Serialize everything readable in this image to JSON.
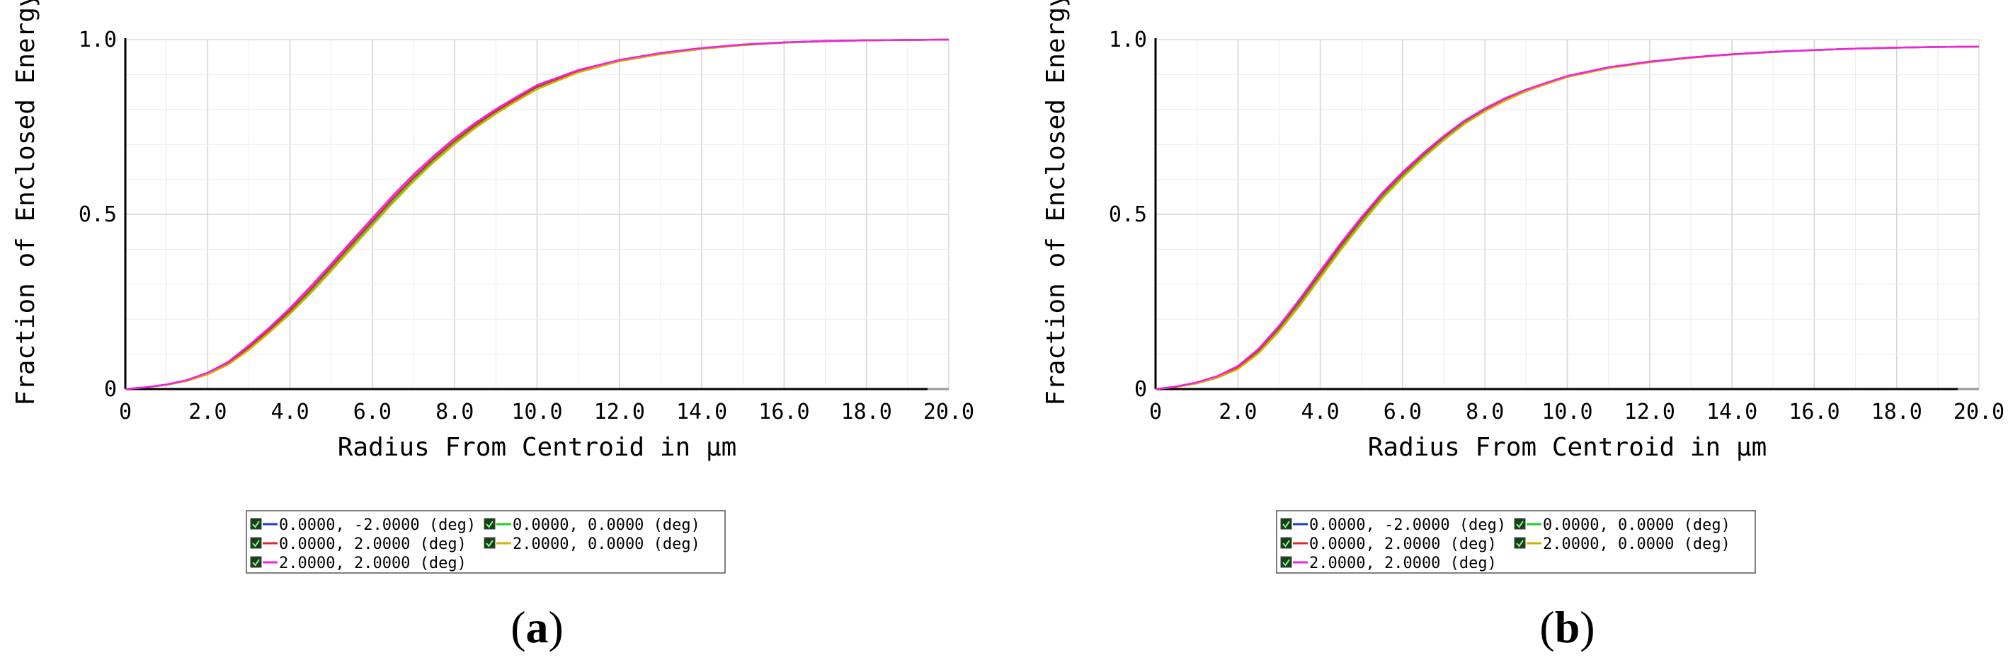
{
  "chart_data": [
    {
      "type": "line",
      "panel_label": "(a)",
      "xlabel": "Radius From Centroid in µm",
      "ylabel": "Fraction of Enclosed Energy",
      "xlim": [
        0,
        20
      ],
      "ylim": [
        0,
        1
      ],
      "x_ticks": [
        "0",
        "2.0",
        "4.0",
        "6.0",
        "8.0",
        "10.0",
        "12.0",
        "14.0",
        "16.0",
        "18.0",
        "20.0"
      ],
      "x_tick_values": [
        0,
        2,
        4,
        6,
        8,
        10,
        12,
        14,
        16,
        18,
        20
      ],
      "y_ticks": [
        "0",
        "0.5",
        "1.0"
      ],
      "y_tick_values": [
        0,
        0.5,
        1.0
      ],
      "grid": true,
      "legend_position": "bottom-center",
      "x": [
        0,
        0.5,
        1,
        1.5,
        2,
        2.5,
        3,
        3.5,
        4,
        4.5,
        5,
        5.5,
        6,
        6.5,
        7,
        7.5,
        8,
        8.5,
        9,
        9.5,
        10,
        11,
        12,
        13,
        14,
        15,
        16,
        17,
        18,
        19,
        20
      ],
      "series": [
        {
          "name": "0.0000, -2.0000 (deg)",
          "color": "#1a3fc8",
          "values": [
            0,
            0.005,
            0.013,
            0.025,
            0.045,
            0.075,
            0.12,
            0.17,
            0.225,
            0.285,
            0.35,
            0.415,
            0.48,
            0.545,
            0.605,
            0.66,
            0.71,
            0.755,
            0.795,
            0.83,
            0.865,
            0.91,
            0.94,
            0.96,
            0.975,
            0.985,
            0.992,
            0.996,
            0.998,
            0.999,
            1.0
          ]
        },
        {
          "name": "0.0000, 0.0000 (deg)",
          "color": "#1fd21f",
          "values": [
            0,
            0.005,
            0.012,
            0.024,
            0.043,
            0.072,
            0.115,
            0.165,
            0.218,
            0.278,
            0.342,
            0.407,
            0.472,
            0.537,
            0.598,
            0.654,
            0.705,
            0.75,
            0.79,
            0.826,
            0.86,
            0.908,
            0.939,
            0.959,
            0.974,
            0.984,
            0.991,
            0.995,
            0.998,
            0.999,
            1.0
          ]
        },
        {
          "name": "0.0000, 2.0000 (deg)",
          "color": "#e02828",
          "values": [
            0,
            0.005,
            0.013,
            0.025,
            0.045,
            0.075,
            0.12,
            0.17,
            0.225,
            0.286,
            0.35,
            0.416,
            0.481,
            0.546,
            0.606,
            0.661,
            0.711,
            0.756,
            0.796,
            0.831,
            0.866,
            0.91,
            0.94,
            0.96,
            0.975,
            0.985,
            0.992,
            0.996,
            0.998,
            0.999,
            1.0
          ]
        },
        {
          "name": "2.0000, 0.0000 (deg)",
          "color": "#d4b000",
          "values": [
            0,
            0.005,
            0.012,
            0.023,
            0.042,
            0.07,
            0.112,
            0.162,
            0.215,
            0.274,
            0.338,
            0.403,
            0.468,
            0.533,
            0.594,
            0.65,
            0.701,
            0.747,
            0.788,
            0.824,
            0.858,
            0.906,
            0.938,
            0.958,
            0.973,
            0.984,
            0.991,
            0.995,
            0.998,
            0.999,
            1.0
          ]
        },
        {
          "name": "2.0000, 2.0000 (deg)",
          "color": "#f020e8",
          "values": [
            0,
            0.005,
            0.013,
            0.026,
            0.047,
            0.078,
            0.125,
            0.176,
            0.232,
            0.294,
            0.358,
            0.424,
            0.489,
            0.554,
            0.614,
            0.668,
            0.718,
            0.762,
            0.801,
            0.836,
            0.87,
            0.913,
            0.942,
            0.962,
            0.976,
            0.986,
            0.992,
            0.996,
            0.998,
            0.999,
            1.0
          ]
        }
      ]
    },
    {
      "type": "line",
      "panel_label": "(b)",
      "xlabel": "Radius From Centroid in µm",
      "ylabel": "Fraction of Enclosed Energy",
      "xlim": [
        0,
        20
      ],
      "ylim": [
        0,
        1
      ],
      "x_ticks": [
        "0",
        "2.0",
        "4.0",
        "6.0",
        "8.0",
        "10.0",
        "12.0",
        "14.0",
        "16.0",
        "18.0",
        "20.0"
      ],
      "x_tick_values": [
        0,
        2,
        4,
        6,
        8,
        10,
        12,
        14,
        16,
        18,
        20
      ],
      "y_ticks": [
        "0",
        "0.5",
        "1.0"
      ],
      "y_tick_values": [
        0,
        0.5,
        1.0
      ],
      "grid": true,
      "legend_position": "bottom-center",
      "x": [
        0,
        0.5,
        1,
        1.5,
        2,
        2.5,
        3,
        3.5,
        4,
        4.5,
        5,
        5.5,
        6,
        6.5,
        7,
        7.5,
        8,
        8.5,
        9,
        9.5,
        10,
        11,
        12,
        13,
        14,
        15,
        16,
        17,
        18,
        19,
        20
      ],
      "series": [
        {
          "name": "0.0000, -2.0000 (deg)",
          "color": "#1a3fc8",
          "values": [
            0,
            0.007,
            0.018,
            0.035,
            0.062,
            0.11,
            0.175,
            0.25,
            0.33,
            0.41,
            0.485,
            0.555,
            0.615,
            0.67,
            0.72,
            0.765,
            0.8,
            0.83,
            0.855,
            0.875,
            0.895,
            0.92,
            0.937,
            0.949,
            0.958,
            0.965,
            0.97,
            0.974,
            0.977,
            0.979,
            0.98
          ]
        },
        {
          "name": "0.0000, 0.0000 (deg)",
          "color": "#1fd21f",
          "values": [
            0,
            0.007,
            0.017,
            0.034,
            0.06,
            0.106,
            0.17,
            0.244,
            0.324,
            0.404,
            0.479,
            0.549,
            0.61,
            0.665,
            0.716,
            0.761,
            0.797,
            0.828,
            0.853,
            0.874,
            0.894,
            0.919,
            0.936,
            0.948,
            0.958,
            0.965,
            0.97,
            0.974,
            0.977,
            0.979,
            0.98
          ]
        },
        {
          "name": "0.0000, 2.0000 (deg)",
          "color": "#e02828",
          "values": [
            0,
            0.007,
            0.018,
            0.035,
            0.063,
            0.111,
            0.176,
            0.251,
            0.331,
            0.411,
            0.486,
            0.556,
            0.616,
            0.671,
            0.721,
            0.766,
            0.801,
            0.831,
            0.856,
            0.876,
            0.895,
            0.92,
            0.937,
            0.949,
            0.958,
            0.965,
            0.97,
            0.974,
            0.977,
            0.979,
            0.98
          ]
        },
        {
          "name": "2.0000, 0.0000 (deg)",
          "color": "#d4b000",
          "values": [
            0,
            0.006,
            0.016,
            0.032,
            0.057,
            0.102,
            0.165,
            0.238,
            0.318,
            0.398,
            0.473,
            0.544,
            0.605,
            0.661,
            0.712,
            0.758,
            0.795,
            0.826,
            0.852,
            0.873,
            0.893,
            0.918,
            0.935,
            0.948,
            0.957,
            0.964,
            0.97,
            0.974,
            0.977,
            0.979,
            0.98
          ]
        },
        {
          "name": "2.0000, 2.0000 (deg)",
          "color": "#f020e8",
          "values": [
            0,
            0.007,
            0.019,
            0.037,
            0.066,
            0.115,
            0.181,
            0.257,
            0.338,
            0.418,
            0.492,
            0.561,
            0.621,
            0.675,
            0.724,
            0.768,
            0.803,
            0.833,
            0.857,
            0.877,
            0.896,
            0.921,
            0.937,
            0.949,
            0.958,
            0.965,
            0.97,
            0.974,
            0.977,
            0.979,
            0.98
          ]
        }
      ]
    }
  ]
}
